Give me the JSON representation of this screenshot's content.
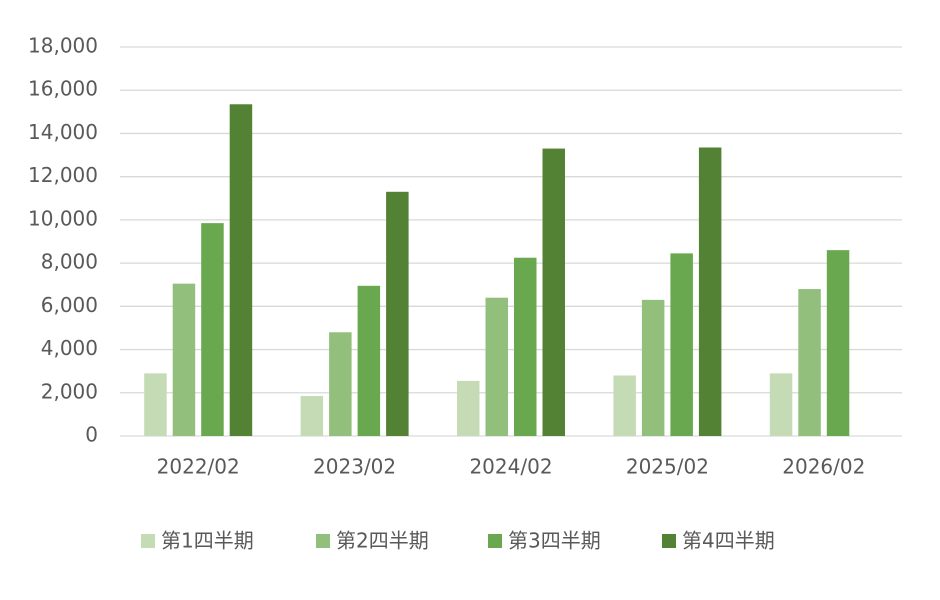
{
  "chart_data": {
    "type": "bar",
    "categories": [
      "2022/02",
      "2023/02",
      "2024/02",
      "2025/02",
      "2026/02"
    ],
    "series": [
      {
        "name": "第1四半期",
        "color": "#c5dbb5",
        "values": [
          2900,
          1850,
          2550,
          2800,
          2900
        ]
      },
      {
        "name": "第2四半期",
        "color": "#93bf7d",
        "values": [
          7050,
          4800,
          6400,
          6300,
          6800
        ]
      },
      {
        "name": "第3四半期",
        "color": "#6aa84f",
        "values": [
          9850,
          6950,
          8250,
          8450,
          8600
        ]
      },
      {
        "name": "第4四半期",
        "color": "#548235",
        "values": [
          15350,
          11300,
          13300,
          13350,
          null
        ]
      }
    ],
    "ylim": [
      0,
      18000
    ],
    "yticks": [
      0,
      {
        "value": 2000,
        "label": "2,000"
      },
      {
        "value": 4000,
        "label": "4,000"
      },
      {
        "value": 6000,
        "label": "6,000"
      },
      {
        "value": 8000,
        "label": "8,000"
      },
      {
        "value": 10000,
        "label": "10,000"
      },
      {
        "value": 12000,
        "label": "12,000"
      },
      {
        "value": 14000,
        "label": "14,000"
      },
      {
        "value": 16000,
        "label": "16,000"
      },
      {
        "value": 18000,
        "label": "18,000"
      }
    ],
    "grid": true
  }
}
